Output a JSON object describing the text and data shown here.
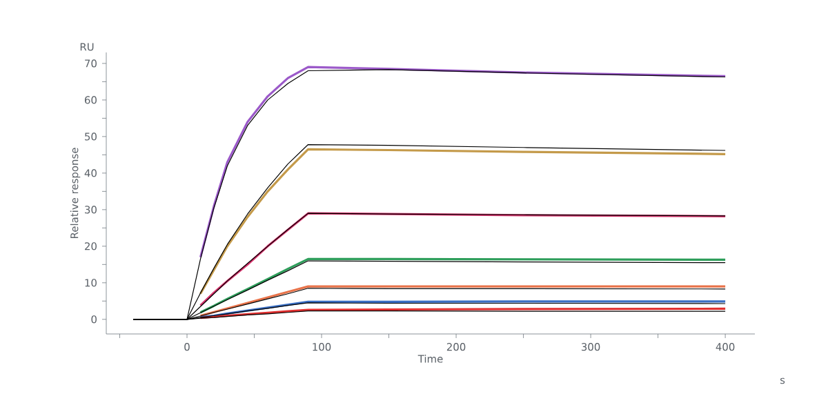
{
  "chart_data": {
    "type": "line",
    "xlabel": "Time",
    "ylabel": "Relative response",
    "annotations": [
      "RU",
      "s"
    ],
    "x": [
      -40,
      0,
      10,
      20,
      30,
      45,
      60,
      75,
      90,
      150,
      250,
      400
    ],
    "series": [
      {
        "color": "#9b59c9",
        "values": [
          null,
          null,
          17,
          31,
          43,
          54,
          61,
          66,
          69,
          68.5,
          67.5,
          66.5
        ]
      },
      {
        "color": "#c49a4a",
        "values": [
          null,
          null,
          7,
          13.5,
          20,
          28,
          35,
          41,
          46.5,
          46.3,
          45.8,
          45.2
        ]
      },
      {
        "color": "#d6336c",
        "values": [
          null,
          null,
          3.8,
          7.3,
          10.5,
          15,
          20,
          24.5,
          29,
          28.8,
          28.5,
          28.2
        ]
      },
      {
        "color": "#2e9e5b",
        "values": [
          null,
          null,
          1.9,
          3.7,
          5.6,
          8.3,
          11,
          13.8,
          16.5,
          16.5,
          16.4,
          16.3
        ]
      },
      {
        "color": "#e8734a",
        "values": [
          null,
          null,
          1,
          2,
          3,
          4.5,
          6,
          7.5,
          9,
          9,
          9,
          9
        ]
      },
      {
        "color": "#3a6fc4",
        "values": [
          null,
          null,
          0.6,
          1,
          1.6,
          2.4,
          3.2,
          4,
          4.8,
          4.8,
          4.9,
          4.9
        ]
      },
      {
        "color": "#e03030",
        "values": [
          null,
          null,
          0.4,
          0.7,
          1,
          1.4,
          1.8,
          2.2,
          2.6,
          2.7,
          2.8,
          2.9
        ]
      },
      {
        "color": "#000000",
        "values": [
          0,
          0,
          16.5,
          30.5,
          42,
          53,
          60,
          64.5,
          68,
          68.3,
          67.4,
          66.3
        ]
      },
      {
        "color": "#000000",
        "values": [
          0,
          0,
          7.2,
          14,
          20.5,
          28.8,
          36,
          42.5,
          47.8,
          47.6,
          47,
          46.2
        ]
      },
      {
        "color": "#000000",
        "values": [
          0,
          0,
          3.5,
          7,
          10.5,
          15.3,
          20,
          24.6,
          29,
          28.8,
          28.6,
          28.3
        ]
      },
      {
        "color": "#000000",
        "values": [
          0,
          0,
          1.8,
          3.6,
          5.4,
          8,
          10.7,
          13.3,
          16,
          15.9,
          15.7,
          15.5
        ]
      },
      {
        "color": "#000000",
        "values": [
          0,
          0,
          0.9,
          1.9,
          2.8,
          4.2,
          5.6,
          7,
          8.5,
          8.4,
          8.4,
          8.3
        ]
      },
      {
        "color": "#000000",
        "values": [
          0,
          0,
          0.5,
          1,
          1.5,
          2.3,
          3,
          3.8,
          4.5,
          4.4,
          4.4,
          4.3
        ]
      },
      {
        "color": "#000000",
        "values": [
          0,
          0,
          0.3,
          0.5,
          0.8,
          1.2,
          1.5,
          1.9,
          2.3,
          2.3,
          2.2,
          2.2
        ]
      }
    ],
    "xlim": [
      -60,
      422
    ],
    "xticks": [
      {
        "value": -50,
        "label": null
      },
      0,
      {
        "value": 50,
        "label": null
      },
      100,
      {
        "value": 150,
        "label": null
      },
      200,
      {
        "value": 250,
        "label": null
      },
      300,
      {
        "value": 350,
        "label": null
      },
      400
    ],
    "ylim": [
      -4,
      73
    ],
    "yticks": [
      0,
      {
        "value": 5,
        "label": null
      },
      10,
      {
        "value": 15,
        "label": null
      },
      20,
      {
        "value": 25,
        "label": null
      },
      30,
      {
        "value": 35,
        "label": null
      },
      40,
      {
        "value": 45,
        "label": null
      },
      50,
      {
        "value": 55,
        "label": null
      },
      60,
      {
        "value": 65,
        "label": null
      },
      70
    ],
    "grid": false,
    "legend": false,
    "marker": "none",
    "line_style": "solid"
  }
}
